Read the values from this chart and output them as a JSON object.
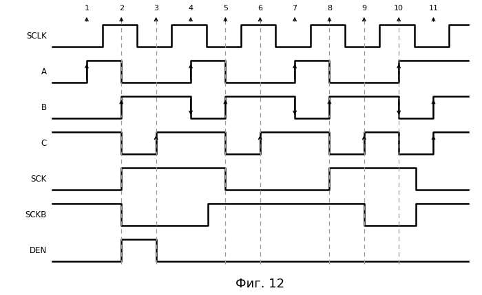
{
  "title": "Фиг. 12",
  "signals": [
    "SCLK",
    "A",
    "B",
    "C",
    "SCK",
    "SCKB",
    "DEN"
  ],
  "background": "#ffffff",
  "line_color": "#000000",
  "dashed_color": "#999999",
  "fig_width": 7.0,
  "fig_height": 4.29,
  "dpi": 100,
  "sclk_transitions": [
    0.0,
    1.0,
    1.45,
    2.0,
    2.45,
    3.0,
    3.45,
    4.0,
    4.45,
    5.0,
    5.45,
    6.0,
    6.45,
    7.0,
    7.45,
    8.0,
    8.45,
    9.0,
    9.45,
    10.0,
    10.45,
    11.0,
    11.45,
    12.0
  ],
  "sclk_values": [
    0,
    0,
    1,
    1,
    0,
    0,
    1,
    1,
    0,
    0,
    1,
    1,
    0,
    0,
    1,
    1,
    0,
    0,
    1,
    1,
    0,
    0,
    1,
    1
  ],
  "A_transitions": [
    0.0,
    1.0,
    2.0,
    4.0,
    5.0,
    7.0,
    8.0,
    10.0,
    12.0
  ],
  "A_values": [
    0,
    1,
    0,
    1,
    0,
    1,
    0,
    1,
    1
  ],
  "B_transitions": [
    0.0,
    2.0,
    4.0,
    5.0,
    7.0,
    8.0,
    10.0,
    11.0,
    12.0
  ],
  "B_values": [
    0,
    1,
    0,
    1,
    0,
    1,
    0,
    1,
    1
  ],
  "C_transitions": [
    0.0,
    2.0,
    3.0,
    5.0,
    6.0,
    8.0,
    9.0,
    10.0,
    11.0,
    12.0
  ],
  "C_values": [
    1,
    0,
    1,
    0,
    1,
    0,
    1,
    0,
    1,
    1
  ],
  "SCK_transitions": [
    0.0,
    2.0,
    5.0,
    8.0,
    10.5,
    12.0
  ],
  "SCK_values": [
    0,
    1,
    0,
    1,
    0,
    0
  ],
  "SCKB_transitions": [
    0.0,
    2.0,
    4.5,
    9.0,
    10.5,
    12.0
  ],
  "SCKB_values": [
    1,
    0,
    1,
    0,
    1,
    1
  ],
  "DEN_transitions": [
    0.0,
    2.0,
    3.0,
    12.0
  ],
  "DEN_values": [
    0,
    1,
    0,
    0
  ],
  "dashed_ticks": [
    2,
    3,
    5,
    6,
    8,
    9,
    10
  ],
  "tick_labels": [
    1,
    2,
    3,
    4,
    5,
    6,
    7,
    8,
    9,
    10,
    11
  ],
  "A_up_arrows": [
    1,
    4,
    7,
    10
  ],
  "B_up_arrows": [
    2,
    5,
    8,
    11
  ],
  "B_down_arrows": [
    4,
    7,
    10
  ],
  "C_up_arrows": [
    3,
    6,
    9,
    11
  ]
}
